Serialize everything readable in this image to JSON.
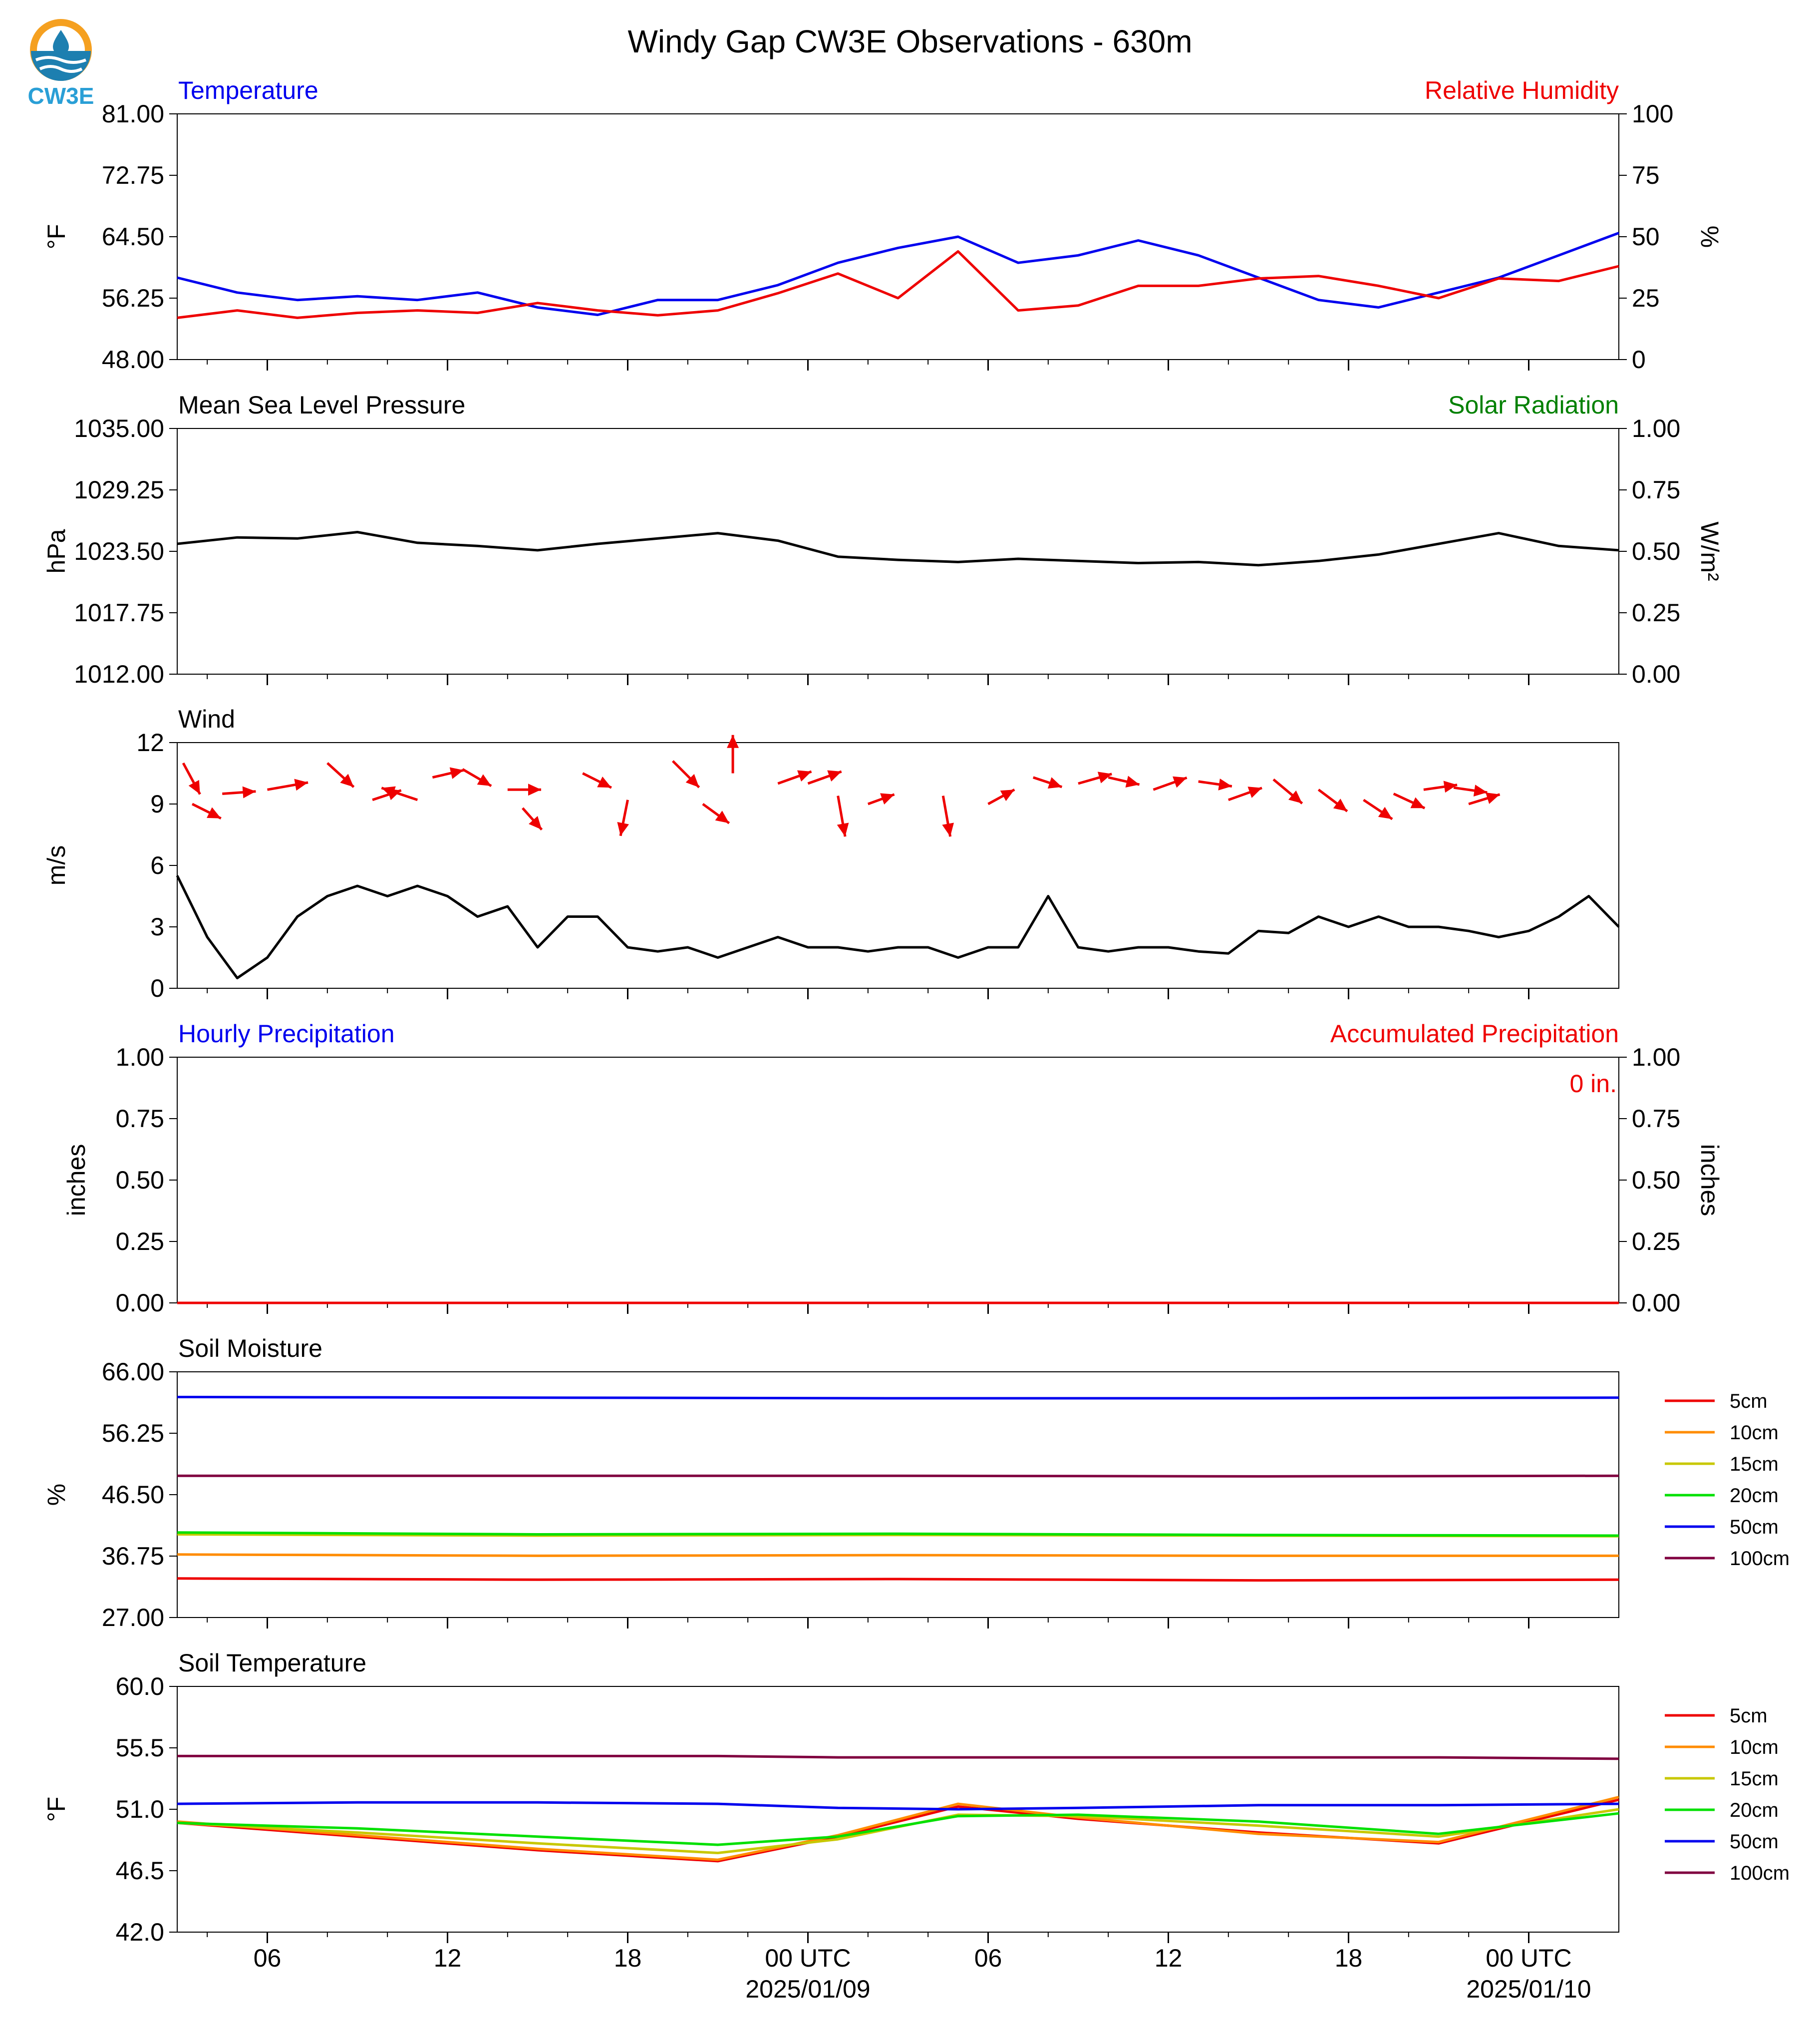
{
  "figure": {
    "title": "Windy Gap CW3E Observations - 630m",
    "logo_text": "CW3E",
    "x_ticks": [
      "06",
      "12",
      "18",
      "00 UTC",
      "06",
      "12",
      "18",
      "00 UTC"
    ],
    "x_dates": [
      "2025/01/09",
      "2025/01/10"
    ]
  },
  "colors": {
    "blue": "#0000ee",
    "red": "#ee0000",
    "green": "#008000",
    "black": "#000000",
    "orange": "#ff8c00",
    "yellow": "#c8c800",
    "lime": "#00e000",
    "purple": "#800040"
  },
  "chart_data": [
    {
      "type": "line",
      "panel": "temperature_rh",
      "title_left": "Temperature",
      "title_right": "Relative Humidity",
      "ylabel": "°F",
      "ylabel_right": "%",
      "ylim": [
        48,
        81
      ],
      "ylim_right": [
        0,
        100
      ],
      "yticks": [
        "81.00",
        "72.75",
        "64.50",
        "56.25",
        "48.00"
      ],
      "yticks_right": [
        "100",
        "75",
        "50",
        "25",
        "0"
      ],
      "x_hours": [
        0,
        2,
        4,
        6,
        8,
        10,
        12,
        14,
        16,
        18,
        20,
        22,
        24,
        26,
        28,
        30,
        32,
        34,
        36,
        38,
        40,
        42,
        44,
        46,
        48
      ],
      "series": [
        {
          "axis": "left",
          "color": "blue",
          "values": [
            59,
            57,
            56,
            56.5,
            56,
            57,
            55,
            54,
            56,
            56,
            58,
            61,
            63,
            64.5,
            61,
            62,
            64,
            62,
            59,
            56,
            55,
            57,
            59,
            62,
            65
          ]
        },
        {
          "axis": "right",
          "color": "red",
          "values": [
            17,
            20,
            17,
            19,
            20,
            19,
            23,
            20,
            18,
            20,
            27,
            35,
            25,
            44,
            20,
            22,
            30,
            30,
            33,
            34,
            30,
            25,
            33,
            32,
            38
          ]
        }
      ]
    },
    {
      "type": "line",
      "panel": "pressure_solar",
      "title_left": "Mean Sea Level Pressure",
      "title_right": "Solar Radiation",
      "ylabel": "hPa",
      "ylabel_right": "W/m²",
      "ylim": [
        1012,
        1035
      ],
      "ylim_right": [
        0,
        1
      ],
      "yticks": [
        "1035.00",
        "1029.25",
        "1023.50",
        "1017.75",
        "1012.00"
      ],
      "yticks_right": [
        "1.00",
        "0.75",
        "0.50",
        "0.25",
        "0.00"
      ],
      "x_hours": [
        0,
        2,
        4,
        6,
        8,
        10,
        12,
        14,
        16,
        18,
        20,
        22,
        24,
        26,
        28,
        30,
        32,
        34,
        36,
        38,
        40,
        42,
        44,
        46,
        48
      ],
      "series": [
        {
          "axis": "left",
          "color": "black",
          "values": [
            1024.2,
            1024.8,
            1024.7,
            1025.3,
            1024.3,
            1024.0,
            1023.6,
            1024.2,
            1024.7,
            1025.2,
            1024.5,
            1023.0,
            1022.7,
            1022.5,
            1022.8,
            1022.6,
            1022.4,
            1022.5,
            1022.2,
            1022.6,
            1023.2,
            1024.2,
            1025.2,
            1024.0,
            1023.6
          ]
        }
      ]
    },
    {
      "type": "line",
      "panel": "wind",
      "title_left": "Wind",
      "ylabel": "m/s",
      "ylim": [
        0,
        12
      ],
      "yticks": [
        "12",
        "9",
        "6",
        "3",
        "0"
      ],
      "x_hours": [
        0,
        1,
        2,
        3,
        4,
        5,
        6,
        7,
        8,
        9,
        10,
        11,
        12,
        13,
        14,
        15,
        16,
        17,
        18,
        19,
        20,
        21,
        22,
        23,
        24,
        25,
        26,
        27,
        28,
        29,
        30,
        31,
        32,
        33,
        34,
        35,
        36,
        37,
        38,
        39,
        40,
        41,
        42,
        43,
        44,
        45,
        46,
        47,
        48
      ],
      "series": [
        {
          "color": "black",
          "values": [
            5.5,
            2.5,
            0.5,
            1.5,
            3.5,
            4.5,
            5,
            4.5,
            5,
            4.5,
            3.5,
            4,
            2,
            3.5,
            3.5,
            2,
            1.8,
            2,
            1.5,
            2,
            2.5,
            2,
            2,
            1.8,
            2,
            2,
            1.5,
            2,
            2,
            4.5,
            2,
            1.8,
            2,
            2,
            1.8,
            1.7,
            2.8,
            2.7,
            3.5,
            3,
            3.5,
            3,
            3,
            2.8,
            2.5,
            2.8,
            3.5,
            4.5,
            3
          ]
        }
      ],
      "arrows": [
        {
          "x": 0.2,
          "y": 11,
          "u": 0.7,
          "v": -1.3
        },
        {
          "x": 0.5,
          "y": 9,
          "u": 1.2,
          "v": -0.6
        },
        {
          "x": 1.5,
          "y": 9.5,
          "u": 1.4,
          "v": 0.1
        },
        {
          "x": 3,
          "y": 9.7,
          "u": 1.7,
          "v": 0.3
        },
        {
          "x": 5,
          "y": 11,
          "u": 1.1,
          "v": -1.0
        },
        {
          "x": 6.5,
          "y": 9.2,
          "u": 1.2,
          "v": 0.4
        },
        {
          "x": 8,
          "y": 9.2,
          "u": -1.5,
          "v": 0.5
        },
        {
          "x": 8.5,
          "y": 10.3,
          "u": 1.3,
          "v": 0.3
        },
        {
          "x": 9.5,
          "y": 10.7,
          "u": 1.2,
          "v": -0.7
        },
        {
          "x": 11,
          "y": 9.7,
          "u": 1.4,
          "v": 0
        },
        {
          "x": 11.5,
          "y": 8.8,
          "u": 0.8,
          "v": -0.9
        },
        {
          "x": 13.5,
          "y": 10.5,
          "u": 1.2,
          "v": -0.6
        },
        {
          "x": 15,
          "y": 9.2,
          "u": -0.3,
          "v": -1.5
        },
        {
          "x": 16.5,
          "y": 11.1,
          "u": 1.1,
          "v": -1.1
        },
        {
          "x": 17.5,
          "y": 9.0,
          "u": 1.1,
          "v": -0.8
        },
        {
          "x": 18.5,
          "y": 10.5,
          "u": 0,
          "v": 1.6
        },
        {
          "x": 20,
          "y": 10.0,
          "u": 1.4,
          "v": 0.5
        },
        {
          "x": 21,
          "y": 10.0,
          "u": 1.4,
          "v": 0.5
        },
        {
          "x": 22,
          "y": 9.4,
          "u": 0.3,
          "v": -1.7
        },
        {
          "x": 23,
          "y": 9.0,
          "u": 1.1,
          "v": 0.4
        },
        {
          "x": 25.5,
          "y": 9.4,
          "u": 0.3,
          "v": -1.7
        },
        {
          "x": 27,
          "y": 9.0,
          "u": 1.1,
          "v": 0.6
        },
        {
          "x": 28.5,
          "y": 10.3,
          "u": 1.2,
          "v": -0.4
        },
        {
          "x": 30,
          "y": 10.0,
          "u": 1.4,
          "v": 0.4
        },
        {
          "x": 31,
          "y": 10.3,
          "u": 1.3,
          "v": -0.3
        },
        {
          "x": 32.5,
          "y": 9.7,
          "u": 1.4,
          "v": 0.5
        },
        {
          "x": 34,
          "y": 10.1,
          "u": 1.4,
          "v": -0.2
        },
        {
          "x": 35,
          "y": 9.2,
          "u": 1.4,
          "v": 0.5
        },
        {
          "x": 36.5,
          "y": 10.2,
          "u": 1.2,
          "v": -1.0
        },
        {
          "x": 38,
          "y": 9.7,
          "u": 1.2,
          "v": -0.9
        },
        {
          "x": 39.5,
          "y": 9.2,
          "u": 1.2,
          "v": -0.8
        },
        {
          "x": 40.5,
          "y": 9.5,
          "u": 1.3,
          "v": -0.6
        },
        {
          "x": 41.5,
          "y": 9.7,
          "u": 1.4,
          "v": 0.2
        },
        {
          "x": 42.5,
          "y": 9.8,
          "u": 1.4,
          "v": -0.2
        },
        {
          "x": 43,
          "y": 9.0,
          "u": 1.3,
          "v": 0.4
        }
      ]
    },
    {
      "type": "line",
      "panel": "precipitation",
      "title_left": "Hourly Precipitation",
      "title_right": "Accumulated Precipitation",
      "annotation": "0 in.",
      "ylabel": "inches",
      "ylabel_right": "inches",
      "ylim": [
        0,
        1
      ],
      "ylim_right": [
        0,
        1
      ],
      "yticks": [
        "1.00",
        "0.75",
        "0.50",
        "0.25",
        "0.00"
      ],
      "yticks_right": [
        "1.00",
        "0.75",
        "0.50",
        "0.25",
        "0.00"
      ],
      "x_hours": [
        0,
        48
      ],
      "series": [
        {
          "color": "red",
          "values": [
            0,
            0
          ]
        }
      ]
    },
    {
      "type": "line",
      "panel": "soil_moisture",
      "title_left": "Soil Moisture",
      "ylabel": "%",
      "ylim": [
        27,
        66
      ],
      "yticks": [
        "66.00",
        "56.25",
        "46.50",
        "36.75",
        "27.00"
      ],
      "x_hours": [
        0,
        12,
        24,
        36,
        48
      ],
      "legend": [
        "5cm",
        "10cm",
        "15cm",
        "20cm",
        "50cm",
        "100cm"
      ],
      "series": [
        {
          "name": "5cm",
          "color": "red",
          "values": [
            33.2,
            33.0,
            33.1,
            32.9,
            33.0
          ]
        },
        {
          "name": "10cm",
          "color": "orange",
          "values": [
            37.0,
            36.8,
            36.9,
            36.8,
            36.8
          ]
        },
        {
          "name": "15cm",
          "color": "yellow",
          "values": [
            40.2,
            40.0,
            40.1,
            40.0,
            39.9
          ]
        },
        {
          "name": "20cm",
          "color": "lime",
          "values": [
            40.5,
            40.2,
            40.3,
            40.1,
            40.0
          ]
        },
        {
          "name": "50cm",
          "color": "blue",
          "values": [
            62.0,
            61.9,
            61.8,
            61.8,
            61.9
          ]
        },
        {
          "name": "100cm",
          "color": "purple",
          "values": [
            49.5,
            49.5,
            49.5,
            49.4,
            49.5
          ]
        }
      ]
    },
    {
      "type": "line",
      "panel": "soil_temperature",
      "title_left": "Soil Temperature",
      "ylabel": "°F",
      "ylim": [
        42,
        60
      ],
      "yticks": [
        "60.0",
        "55.5",
        "51.0",
        "46.5",
        "42.0"
      ],
      "x_hours": [
        0,
        6,
        12,
        18,
        22,
        26,
        30,
        36,
        42,
        48
      ],
      "legend": [
        "5cm",
        "10cm",
        "15cm",
        "20cm",
        "50cm",
        "100cm"
      ],
      "series": [
        {
          "name": "5cm",
          "color": "red",
          "values": [
            50.0,
            49.0,
            48.0,
            47.2,
            49.0,
            51.2,
            50.3,
            49.3,
            48.5,
            51.7
          ]
        },
        {
          "name": "10cm",
          "color": "orange",
          "values": [
            50.1,
            49.1,
            48.1,
            47.3,
            49.1,
            51.4,
            50.4,
            49.2,
            48.6,
            51.9
          ]
        },
        {
          "name": "15cm",
          "color": "yellow",
          "values": [
            50.0,
            49.3,
            48.5,
            47.8,
            48.8,
            50.6,
            50.5,
            49.8,
            49.0,
            51.0
          ]
        },
        {
          "name": "20cm",
          "color": "lime",
          "values": [
            50.0,
            49.6,
            49.0,
            48.4,
            49.0,
            50.5,
            50.6,
            50.1,
            49.2,
            50.7
          ]
        },
        {
          "name": "50cm",
          "color": "blue",
          "values": [
            51.4,
            51.5,
            51.5,
            51.4,
            51.1,
            51.0,
            51.1,
            51.3,
            51.3,
            51.4
          ]
        },
        {
          "name": "100cm",
          "color": "purple",
          "values": [
            54.9,
            54.9,
            54.9,
            54.9,
            54.8,
            54.8,
            54.8,
            54.8,
            54.8,
            54.7
          ]
        }
      ]
    }
  ]
}
